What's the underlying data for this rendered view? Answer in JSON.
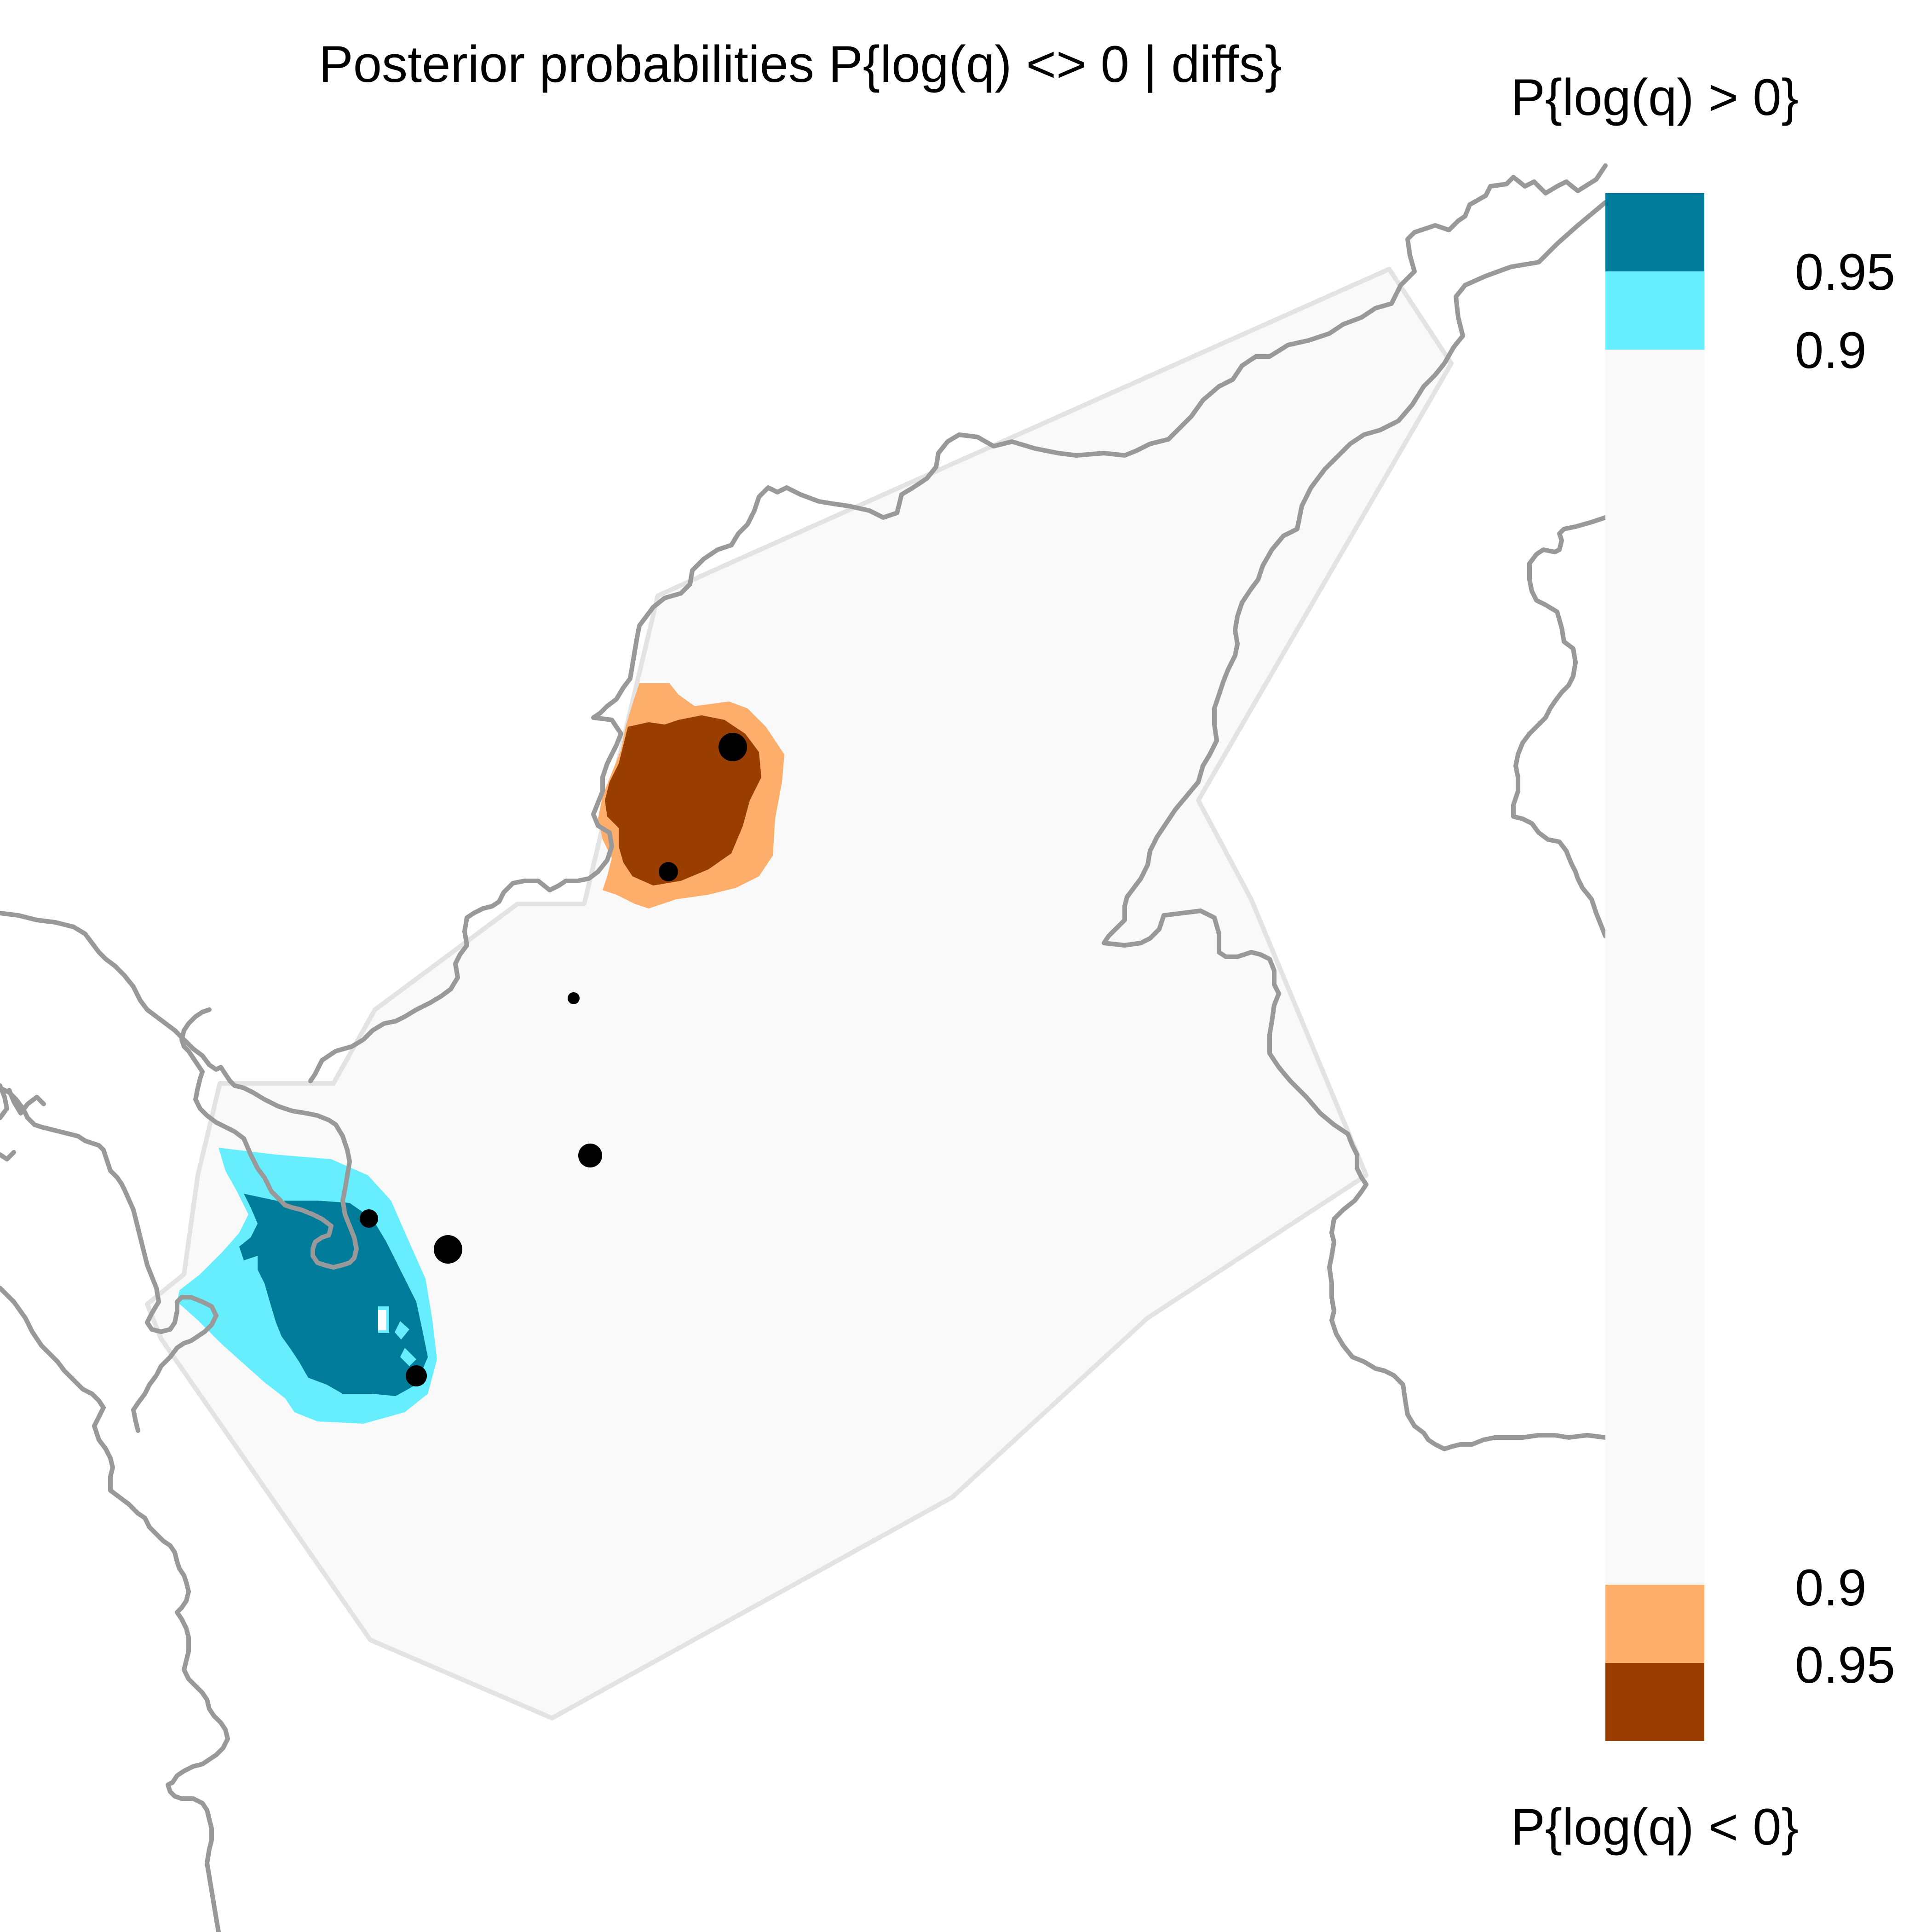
{
  "title": "Posterior probabilities P{log(q) <> 0 | diffs}",
  "legend": {
    "top_label": "P{log(q) > 0}",
    "bottom_label": "P{log(q) < 0}",
    "tick_095_top": "0.95",
    "tick_09_top": "0.9",
    "tick_09_bottom": "0.9",
    "tick_095_bottom": "0.95"
  },
  "colors": {
    "high_095": "#007B9A",
    "high_09": "#66EEFF",
    "neutral": "#F9F9F9",
    "low_09": "#FDAE6B",
    "low_095": "#9A3D00",
    "outline": "#999999",
    "hull": "#E3E3E3"
  },
  "samples": [
    {
      "id": "s1",
      "size": "large"
    },
    {
      "id": "s2",
      "size": "medium"
    },
    {
      "id": "s3",
      "size": "small"
    },
    {
      "id": "s4",
      "size": "medium"
    },
    {
      "id": "s5",
      "size": "medium"
    },
    {
      "id": "s6",
      "size": "large"
    },
    {
      "id": "s7",
      "size": "medium"
    }
  ]
}
